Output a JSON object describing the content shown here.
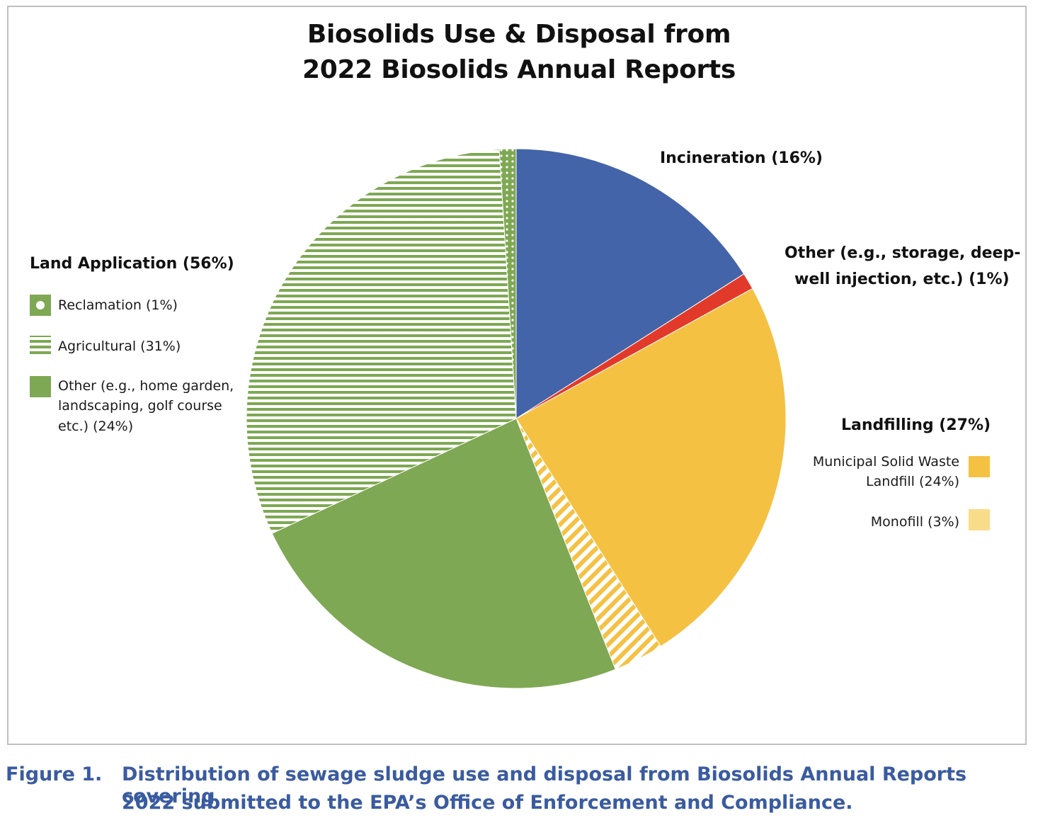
{
  "chart_data": {
    "type": "pie",
    "title_line1": "Biosolids Use & Disposal from",
    "title_line2": "2022 Biosolids Annual Reports",
    "slices": [
      {
        "name": "Incineration",
        "value": 16,
        "color": "#4364a8",
        "pattern": "solid"
      },
      {
        "name": "Other (e.g., storage, deep-well injection, etc.)",
        "value": 1,
        "color": "#e23a2a",
        "pattern": "solid"
      },
      {
        "name": "Municipal Solid Waste Landfill",
        "value": 24,
        "color": "#f5c142",
        "pattern": "solid"
      },
      {
        "name": "Monofill",
        "value": 3,
        "color": "#f5c142",
        "pattern": "diagonal-stripes"
      },
      {
        "name": "Other (e.g., home garden, landscaping, golf course etc.)",
        "value": 24,
        "color": "#7ea853",
        "pattern": "solid"
      },
      {
        "name": "Agricultural",
        "value": 31,
        "color": "#7ea853",
        "pattern": "horizontal-stripes"
      },
      {
        "name": "Reclamation",
        "value": 1,
        "color": "#7ea853",
        "pattern": "dots"
      }
    ],
    "labels": {
      "incineration": "Incineration (16%)",
      "other_line1": "Other (e.g., storage, deep-",
      "other_line2": "well injection, etc.) (1%)",
      "landfilling_group": "Landfilling (27%)",
      "land_app_group": "Land Application (56%)"
    },
    "legend": {
      "reclamation": "Reclamation (1%)",
      "agricultural": "Agricultural (31%)",
      "land_other_line1": "Other (e.g., home garden,",
      "land_other_line2": "landscaping, golf course",
      "land_other_line3": "etc.) (24%)",
      "msw_line1": "Municipal Solid Waste",
      "msw_line2": "Landfill (24%)",
      "monofill": "Monofill (3%)"
    },
    "colors": {
      "blue": "#4364a8",
      "red": "#e23a2a",
      "yellow": "#f5c142",
      "light_yellow": "#f8dc8a",
      "green": "#7ea853"
    }
  },
  "caption": {
    "figure_label": "Figure 1.",
    "line1": "Distribution of sewage sludge use and disposal from Biosolids Annual Reports covering",
    "line2": "2022 submitted to the EPA’s Office of Enforcement and Compliance."
  }
}
